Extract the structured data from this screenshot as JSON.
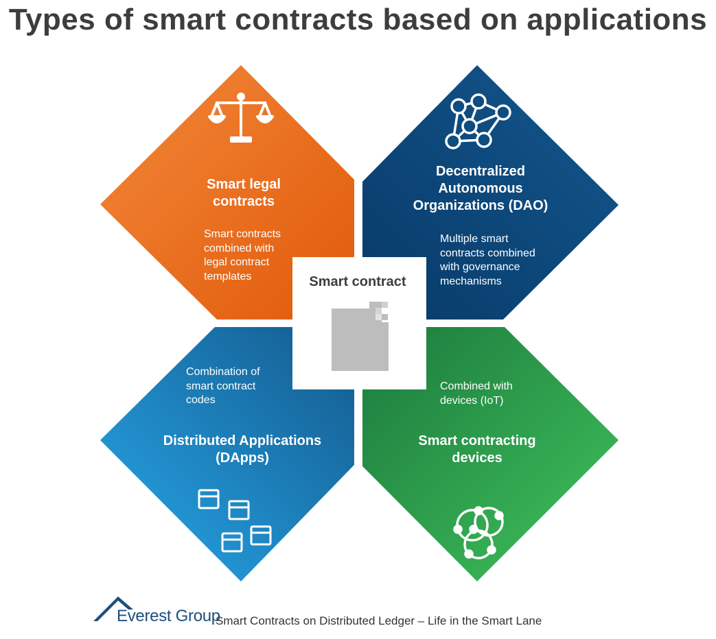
{
  "title": "Types of smart contracts based on applications",
  "center": {
    "label": "Smart contract",
    "icon": "document-icon"
  },
  "quadrants": [
    {
      "id": "legal",
      "title_lines": [
        "Smart legal",
        "contracts"
      ],
      "desc_lines": [
        "Smart contracts",
        "combined with",
        "legal contract",
        "templates"
      ],
      "color": "#ef7c2e",
      "icon": "scales-icon"
    },
    {
      "id": "dao",
      "title_lines": [
        "Decentralized",
        "Autonomous",
        "Organizations (DAO)"
      ],
      "desc_lines": [
        "Multiple smart",
        "contracts combined",
        "with governance",
        "mechanisms"
      ],
      "color": "#0f4d80",
      "icon": "network-icon"
    },
    {
      "id": "dapps",
      "title_lines": [
        "Distributed Applications",
        "(DApps)"
      ],
      "desc_lines": [
        "Combination of",
        "smart contract",
        "codes"
      ],
      "color": "#1f8fcf",
      "icon": "app-windows-icon"
    },
    {
      "id": "devices",
      "title_lines": [
        "Smart contracting",
        "devices"
      ],
      "desc_lines": [
        "Combined with",
        "devices (IoT)"
      ],
      "color": "#2a9e4c",
      "icon": "connected-nodes-icon"
    }
  ],
  "footer": {
    "logo": "Everest Group",
    "logo_icon": "mountain-icon",
    "text": "Smart Contracts on Distributed Ledger – Life in the Smart Lane"
  }
}
